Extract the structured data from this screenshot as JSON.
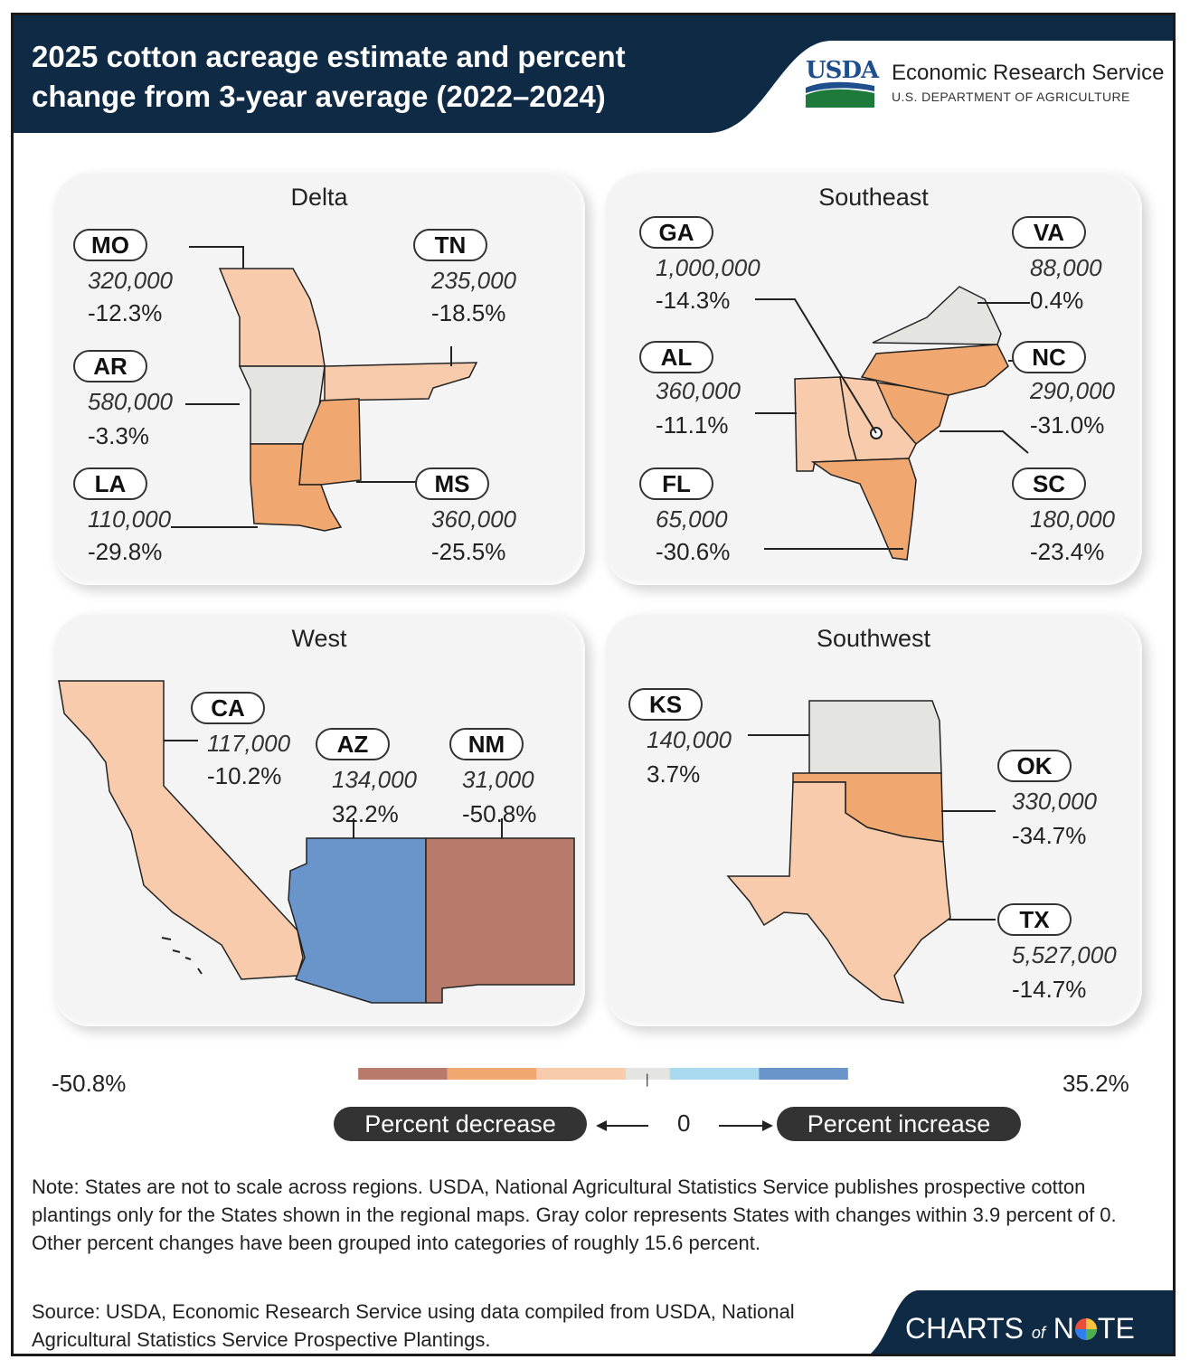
{
  "header": {
    "title": "2025 cotton acreage estimate and percent change from 3-year average (2022–2024)",
    "logo_short": "USDA",
    "agency": "Economic Research Service",
    "department": "U.S. DEPARTMENT OF AGRICULTURE"
  },
  "colors": {
    "header_navy": "#0f2a44",
    "decrease_dark": "#b87a6a",
    "decrease_mid": "#f0a870",
    "decrease_light": "#f7cbab",
    "neutral": "#e4e4e1",
    "increase_light": "#a8d9ee",
    "increase_dark": "#6995cb"
  },
  "chart_data": {
    "type": "choropleth",
    "regions": [
      {
        "name": "Delta",
        "states": [
          {
            "abbr": "MO",
            "acres": "320,000",
            "pct_change": "-12.3%"
          },
          {
            "abbr": "TN",
            "acres": "235,000",
            "pct_change": "-18.5%"
          },
          {
            "abbr": "AR",
            "acres": "580,000",
            "pct_change": "-3.3%"
          },
          {
            "abbr": "LA",
            "acres": "110,000",
            "pct_change": "-29.8%"
          },
          {
            "abbr": "MS",
            "acres": "360,000",
            "pct_change": "-25.5%"
          }
        ]
      },
      {
        "name": "Southeast",
        "states": [
          {
            "abbr": "GA",
            "acres": "1,000,000",
            "pct_change": "-14.3%"
          },
          {
            "abbr": "VA",
            "acres": "88,000",
            "pct_change": "0.4%"
          },
          {
            "abbr": "AL",
            "acres": "360,000",
            "pct_change": "-11.1%"
          },
          {
            "abbr": "NC",
            "acres": "290,000",
            "pct_change": "-31.0%"
          },
          {
            "abbr": "FL",
            "acres": "65,000",
            "pct_change": "-30.6%"
          },
          {
            "abbr": "SC",
            "acres": "180,000",
            "pct_change": "-23.4%"
          }
        ]
      },
      {
        "name": "West",
        "states": [
          {
            "abbr": "CA",
            "acres": "117,000",
            "pct_change": "-10.2%"
          },
          {
            "abbr": "AZ",
            "acres": "134,000",
            "pct_change": "32.2%"
          },
          {
            "abbr": "NM",
            "acres": "31,000",
            "pct_change": "-50.8%"
          }
        ]
      },
      {
        "name": "Southwest",
        "states": [
          {
            "abbr": "KS",
            "acres": "140,000",
            "pct_change": "3.7%"
          },
          {
            "abbr": "OK",
            "acres": "330,000",
            "pct_change": "-34.7%"
          },
          {
            "abbr": "TX",
            "acres": "5,527,000",
            "pct_change": "-14.7%"
          }
        ]
      }
    ],
    "legend": {
      "min": "-50.8%",
      "max": "35.2%",
      "zero": "0",
      "decrease_label": "Percent decrease",
      "increase_label": "Percent increase"
    }
  },
  "note": "Note: States are not to scale across regions. USDA, National Agricultural Statistics Service publishes prospective cotton plantings only for the States shown in the regional maps. Gray color represents States with changes within 3.9 percent of 0. Other percent changes have been grouped into categories of roughly 15.6 percent.",
  "source": "Source: USDA, Economic Research Service using data compiled from USDA, National Agricultural Statistics Service Prospective Plantings.",
  "footer": {
    "brand_left": "CHARTS",
    "brand_of": "of",
    "brand_right": "N",
    "brand_o": "O",
    "brand_end": "TE"
  }
}
